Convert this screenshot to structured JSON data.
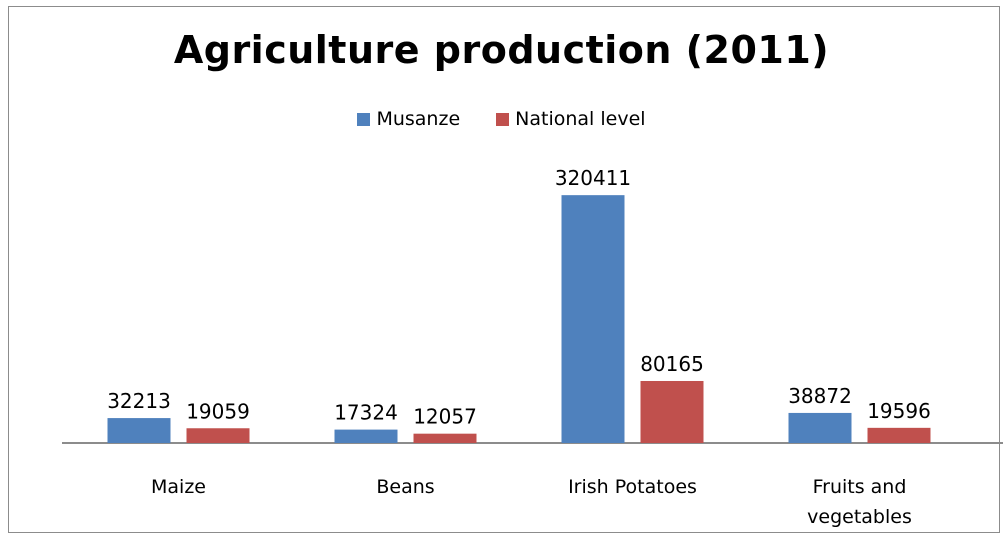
{
  "chart_data": {
    "type": "bar",
    "title": "Agriculture production (2011)",
    "categories": [
      "Maize",
      "Beans",
      "Irish Potatoes",
      "Fruits and vegetables"
    ],
    "series": [
      {
        "name": "Musanze",
        "color": "#4f81bd",
        "values": [
          32213,
          17324,
          320411,
          38872
        ]
      },
      {
        "name": "National level",
        "color": "#c0504d",
        "values": [
          19059,
          12057,
          80165,
          19596
        ]
      }
    ],
    "xlabel": "",
    "ylabel": "",
    "ylim": [
      0,
      340000
    ],
    "grid": false,
    "data_labels": true,
    "legend_position": "top"
  }
}
